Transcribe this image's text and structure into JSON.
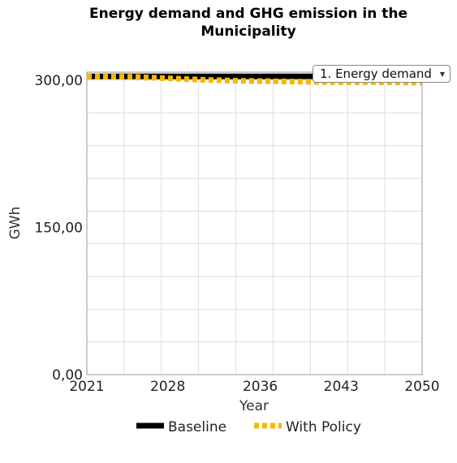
{
  "chart_data": {
    "type": "line",
    "title": "Energy demand and GHG emission in the Municipality",
    "title_lines": [
      "Energy demand and GHG emission in the",
      "Municipality"
    ],
    "xlabel": "Year",
    "ylabel": "GWh",
    "x_ticks": [
      "2021",
      "2028",
      "2036",
      "2043",
      "2050"
    ],
    "x_tick_values": [
      2021,
      2028,
      2036,
      2043,
      2050
    ],
    "y_ticks": [
      "0,00",
      "150,00",
      "300,00"
    ],
    "y_tick_values": [
      0,
      150,
      300
    ],
    "xlim": [
      2021,
      2050
    ],
    "ylim": [
      0,
      300
    ],
    "grid": true,
    "legend_position": "bottom",
    "series": [
      {
        "name": "Baseline",
        "color": "#000000",
        "style": "solid",
        "x": [
          2021,
          2025,
          2030,
          2035,
          2040,
          2045,
          2050
        ],
        "values": [
          304,
          304,
          304,
          304,
          304,
          304,
          304
        ]
      },
      {
        "name": "With Policy",
        "color": "#f5b800",
        "style": "dotted",
        "x": [
          2021,
          2025,
          2028,
          2031,
          2034,
          2037,
          2040,
          2043,
          2046,
          2050
        ],
        "values": [
          304,
          303.5,
          302,
          300.5,
          299.5,
          299,
          298.5,
          298,
          298,
          297.5
        ]
      }
    ]
  },
  "dropdown": {
    "selected": "1. Energy demand"
  }
}
